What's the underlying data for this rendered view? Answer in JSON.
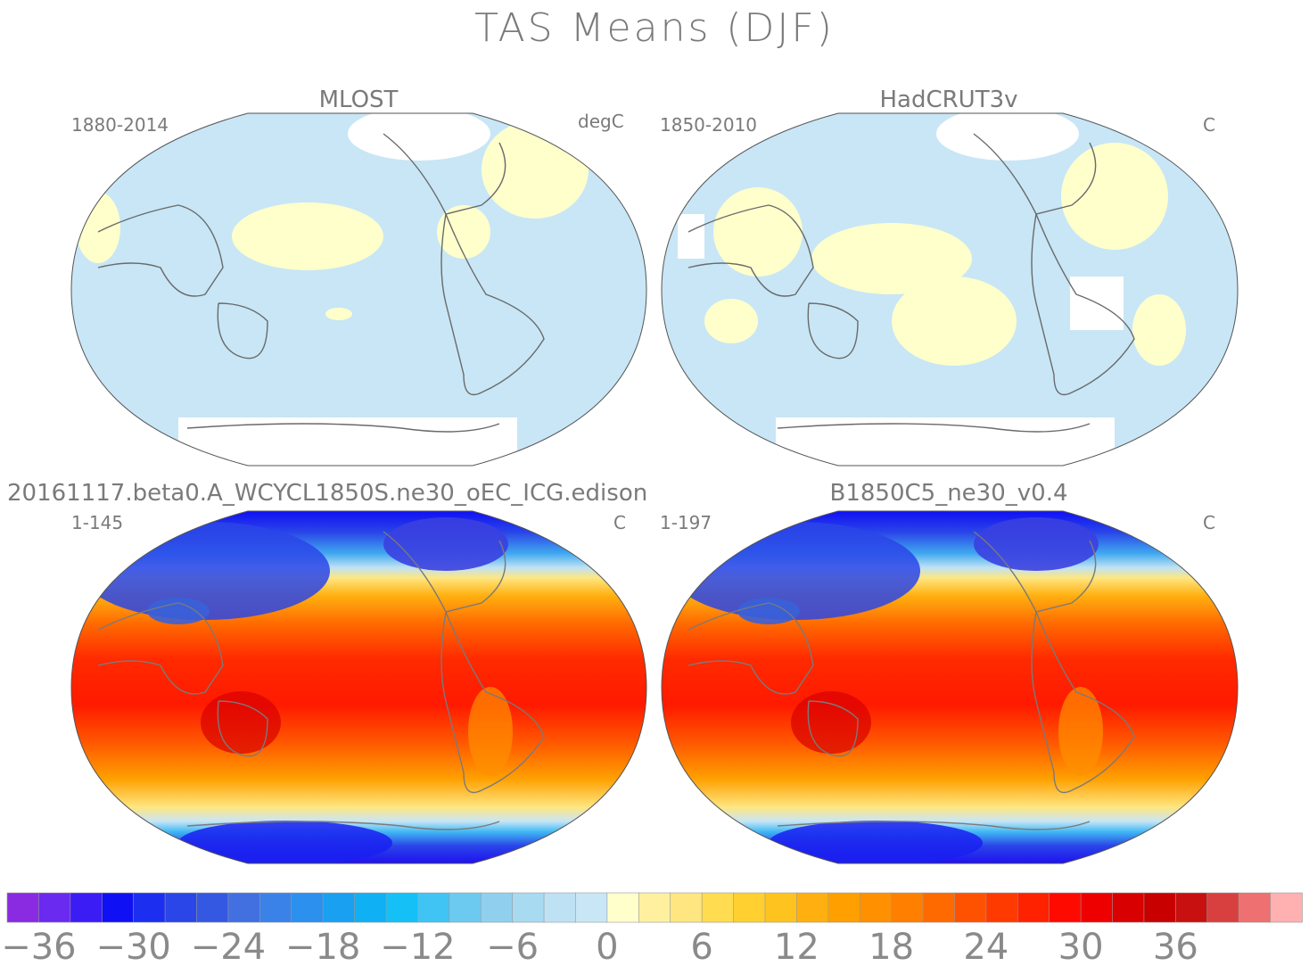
{
  "title": "TAS Means (DJF)",
  "panels": [
    {
      "name": "MLOST",
      "period": "1880-2014",
      "units": "degC"
    },
    {
      "name": "HadCRUT3v",
      "period": "1850-2010",
      "units": "C"
    },
    {
      "name": "20161117.beta0.A_WCYCL1850S.ne30_oEC_ICG.edison",
      "period": "1-145",
      "units": "C"
    },
    {
      "name": "B1850C5_ne30_v0.4",
      "period": "1-197",
      "units": "C"
    }
  ],
  "colorbar": {
    "colors": [
      "#8a2be2",
      "#6a2aef",
      "#3b1cf5",
      "#1010f5",
      "#1c2ef0",
      "#2a45e8",
      "#3558e2",
      "#4270e0",
      "#3a82e8",
      "#2c90ee",
      "#1aa0f0",
      "#10b0f4",
      "#14c0f6",
      "#40c4f4",
      "#6ccaf0",
      "#90d0ee",
      "#a8daf2",
      "#bee2f4",
      "#c8e6f6",
      "#ffffcc",
      "#fff0a0",
      "#ffe680",
      "#ffdc50",
      "#ffd030",
      "#ffc320",
      "#ffb010",
      "#ffa000",
      "#ff9000",
      "#ff7f00",
      "#ff6a00",
      "#ff5200",
      "#ff3a00",
      "#ff2200",
      "#ff0a00",
      "#ee0000",
      "#d80000",
      "#c80000",
      "#c81010",
      "#d84040",
      "#ee7070",
      "#ffb0b0"
    ],
    "tick_labels": [
      "−36",
      "−30",
      "−24",
      "−18",
      "−12",
      "−6",
      "0",
      "6",
      "12",
      "18",
      "24",
      "30",
      "36"
    ],
    "tick_values": [
      -36,
      -30,
      -24,
      -18,
      -12,
      -6,
      0,
      6,
      12,
      18,
      24,
      30,
      36
    ]
  }
}
